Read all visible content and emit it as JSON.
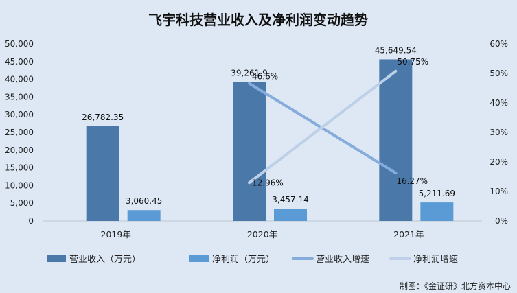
{
  "chart_data": {
    "type": "bar",
    "title": "飞宇科技营业收入及净利润变动趋势",
    "categories": [
      "2019年",
      "2020年",
      "2021年"
    ],
    "series": [
      {
        "name": "营业收入（万元）",
        "kind": "bar",
        "axis": "left",
        "color": "#4a78a9",
        "values": [
          26782.35,
          39261.9,
          45649.54
        ],
        "labels": [
          "26,782.35",
          "39,261.9",
          "45,649.54"
        ]
      },
      {
        "name": "净利润（万元）",
        "kind": "bar",
        "axis": "left",
        "color": "#5b9bd5",
        "values": [
          3060.45,
          3457.14,
          5211.69
        ],
        "labels": [
          "3,060.45",
          "3,457.14",
          "5,211.69"
        ]
      },
      {
        "name": "营业收入增速",
        "kind": "line",
        "axis": "right",
        "color": "#86acdc",
        "values": [
          null,
          46.6,
          16.27
        ],
        "labels": [
          null,
          "46.6%",
          "16.27%"
        ]
      },
      {
        "name": "净利润增速",
        "kind": "line",
        "axis": "right",
        "color": "#bed0e8",
        "values": [
          null,
          12.96,
          50.75
        ],
        "labels": [
          null,
          "12.96%",
          "50.75%"
        ]
      }
    ],
    "y_left": {
      "min": 0,
      "max": 50000,
      "step": 5000,
      "tick_labels": [
        "0",
        "5,000",
        "10,000",
        "15,000",
        "20,000",
        "25,000",
        "30,000",
        "35,000",
        "40,000",
        "45,000",
        "50,000"
      ]
    },
    "y_right": {
      "min": 0,
      "max": 60,
      "step": 10,
      "tick_labels": [
        "0%",
        "10%",
        "20%",
        "30%",
        "40%",
        "50%",
        "60%"
      ]
    },
    "grid": false,
    "legend_position": "bottom"
  },
  "credit": "制图：《金证研》北方资本中心"
}
